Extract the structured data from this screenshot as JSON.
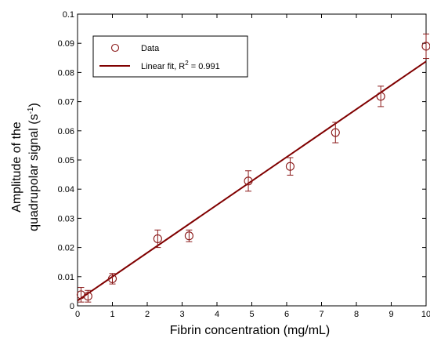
{
  "chart_data": {
    "type": "scatter",
    "title": "",
    "xlabel": "Fibrin concentration (mg/mL)",
    "ylabel_line1": "Amplitude of the",
    "ylabel_line2": "quadrupolar signal (s",
    "ylabel_sup": "-1",
    "ylabel_tail": ")",
    "xlim": [
      0,
      10
    ],
    "ylim": [
      0,
      0.1
    ],
    "xticks": [
      0,
      1,
      2,
      3,
      4,
      5,
      6,
      7,
      8,
      9,
      10
    ],
    "xtick_labels": [
      "0",
      "1",
      "2",
      "3",
      "4",
      "5",
      "6",
      "7",
      "8",
      "9",
      "10"
    ],
    "yticks": [
      0,
      0.01,
      0.02,
      0.03,
      0.04,
      0.05,
      0.06,
      0.07,
      0.08,
      0.09,
      0.1
    ],
    "ytick_labels": [
      "0",
      "0.01",
      "0.02",
      "0.03",
      "0.04",
      "0.05",
      "0.06",
      "0.07",
      "0.08",
      "0.09",
      "0.1"
    ],
    "grid": false,
    "legend_position": "top-left",
    "series": [
      {
        "name": "Data",
        "kind": "points-with-error-bars",
        "color": "#8b1a1a",
        "x": [
          0.1,
          0.3,
          1.0,
          2.3,
          3.2,
          4.9,
          6.1,
          7.4,
          8.7,
          10.0
        ],
        "y": [
          0.0038,
          0.0033,
          0.0093,
          0.023,
          0.024,
          0.0428,
          0.0478,
          0.0594,
          0.0718,
          0.089
        ],
        "err": [
          0.0025,
          0.002,
          0.0018,
          0.003,
          0.002,
          0.0035,
          0.003,
          0.0035,
          0.0035,
          0.0042
        ]
      },
      {
        "name_prefix": "Linear fit, R",
        "name_sup": "2",
        "name_suffix": " = 0.991",
        "kind": "line",
        "color": "#800000",
        "x": [
          0,
          10
        ],
        "y": [
          0.0018,
          0.0838
        ]
      }
    ]
  }
}
